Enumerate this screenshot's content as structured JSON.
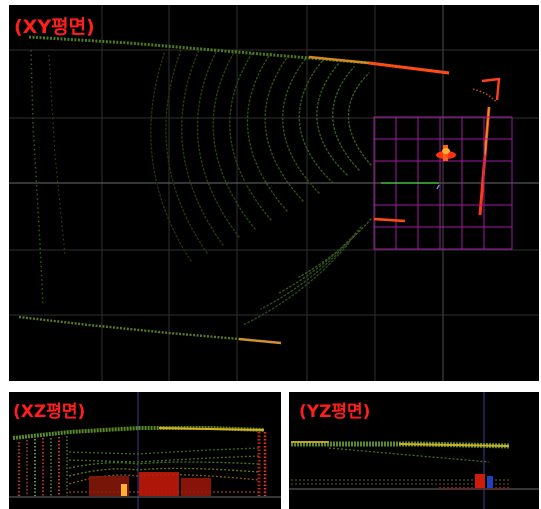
{
  "views": {
    "xy": {
      "label": "(XY평면)"
    },
    "xz": {
      "label": "(XZ평면)"
    },
    "yz": {
      "label": "(YZ평면)"
    }
  },
  "colors": {
    "background": "#000000",
    "grid": "#3a3a3a",
    "axis_horizontal": "#6a6a6a",
    "selection_box": "#a01aa0",
    "label": "#ff1e1e",
    "point_far": "#2f6b1f",
    "point_near": "#ff3a10",
    "point_mid": "#d8a020"
  },
  "icons": {
    "origin_marker": "origin-axis-icon"
  }
}
